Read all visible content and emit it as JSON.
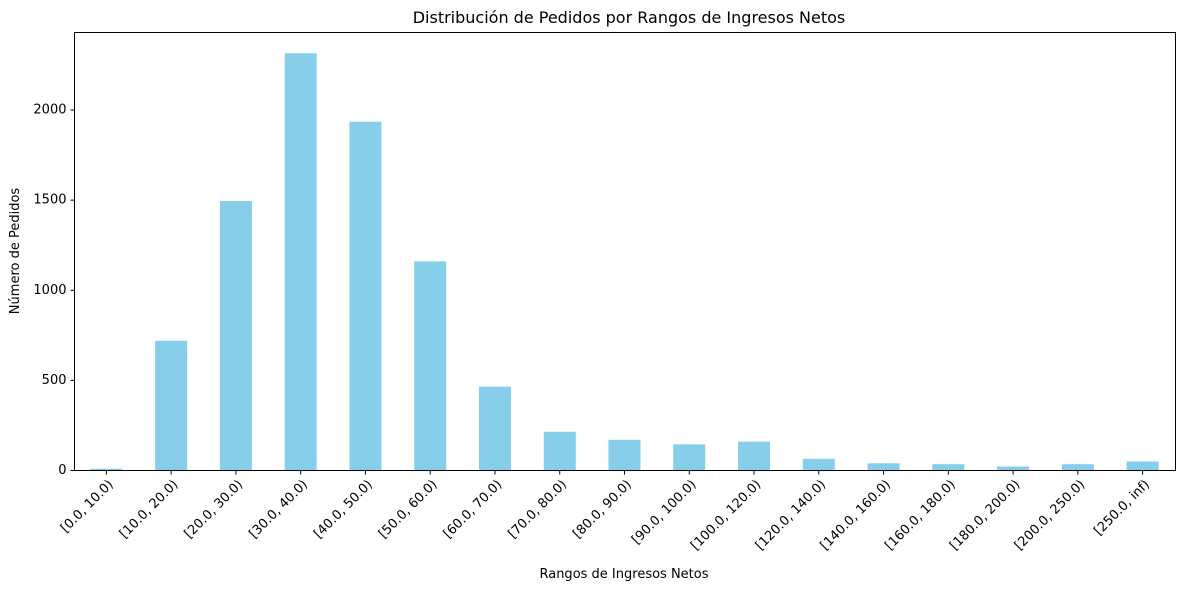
{
  "chart_data": {
    "type": "bar",
    "title": "Distribución de Pedidos por Rangos de Ingresos Netos",
    "xlabel": "Rangos de Ingresos Netos",
    "ylabel": "Número de Pedidos",
    "categories": [
      "[0.0, 10.0)",
      "[10.0, 20.0)",
      "[20.0, 30.0)",
      "[30.0, 40.0)",
      "[40.0, 50.0)",
      "[50.0, 60.0)",
      "[60.0, 70.0)",
      "[70.0, 80.0)",
      "[80.0, 90.0)",
      "[90.0, 100.0)",
      "[100.0, 120.0)",
      "[120.0, 140.0)",
      "[140.0, 160.0)",
      "[160.0, 180.0)",
      "[180.0, 200.0)",
      "[200.0, 250.0)",
      "[250.0, inf)"
    ],
    "values": [
      10,
      720,
      1495,
      2315,
      1935,
      1160,
      465,
      215,
      170,
      145,
      160,
      65,
      40,
      35,
      22,
      35,
      50
    ],
    "ylim": [
      0,
      2430
    ],
    "yticks": [
      0,
      500,
      1000,
      1500,
      2000
    ],
    "grid": false,
    "bar_color": "#87ceeb",
    "x_tick_rotation": "45 degrees"
  }
}
